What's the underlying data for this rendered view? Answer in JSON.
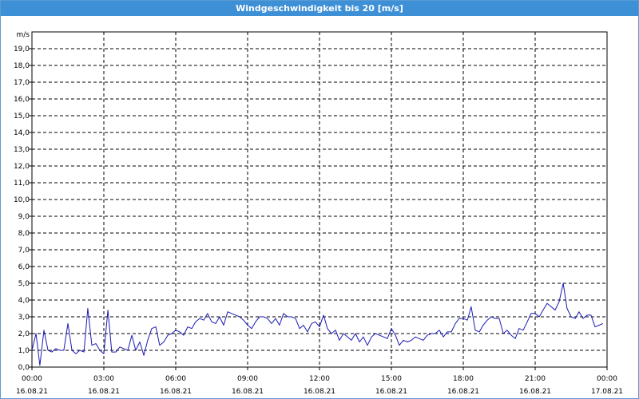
{
  "window": {
    "title": "Windgeschwindigkeit bis 20 [m/s]"
  },
  "colors": {
    "title_bar": "#3d8fd6",
    "line": "#1a1ab4",
    "grid": "#000000"
  },
  "chart_data": {
    "type": "line",
    "title": "Windgeschwindigkeit bis 20 [m/s]",
    "ylabel": "m/s",
    "xlabel": "",
    "ylim": [
      0,
      20
    ],
    "xlim_hours": [
      0,
      24
    ],
    "grid": true,
    "legend": "none",
    "y_ticks": [
      "0,0",
      "1,0",
      "2,0",
      "3,0",
      "4,0",
      "5,0",
      "6,0",
      "7,0",
      "8,0",
      "9,0",
      "10,0",
      "11,0",
      "12,0",
      "13,0",
      "14,0",
      "15,0",
      "16,0",
      "17,0",
      "18,0",
      "19,0"
    ],
    "x_ticks": [
      {
        "time": "00:00",
        "date": "16.08.21"
      },
      {
        "time": "03:00",
        "date": "16.08.21"
      },
      {
        "time": "06:00",
        "date": "16.08.21"
      },
      {
        "time": "09:00",
        "date": "16.08.21"
      },
      {
        "time": "12:00",
        "date": "16.08.21"
      },
      {
        "time": "15:00",
        "date": "16.08.21"
      },
      {
        "time": "18:00",
        "date": "16.08.21"
      },
      {
        "time": "21:00",
        "date": "16.08.21"
      },
      {
        "time": "00:00",
        "date": "17.08.21"
      }
    ],
    "series": [
      {
        "x": [
          0,
          0.17,
          0.33,
          0.5,
          0.67,
          0.83,
          1.0,
          1.17,
          1.33,
          1.5,
          1.67,
          1.83,
          2.0,
          2.17,
          2.33,
          2.5,
          2.67,
          2.83,
          3.0,
          3.17,
          3.33,
          3.5,
          3.67,
          3.83,
          4.0,
          4.17,
          4.33,
          4.5,
          4.67,
          4.83,
          5.0,
          5.17,
          5.33,
          5.5,
          5.67,
          5.83,
          6.0,
          6.17,
          6.33,
          6.5,
          6.67,
          6.83,
          7.0,
          7.17,
          7.33,
          7.5,
          7.67,
          7.83,
          8.0,
          8.17,
          8.33,
          8.5,
          8.67,
          8.83,
          9.0,
          9.17,
          9.33,
          9.5,
          9.67,
          9.83,
          10.0,
          10.17,
          10.33,
          10.5,
          10.67,
          10.83,
          11.0,
          11.17,
          11.33,
          11.5,
          11.67,
          11.83,
          12.0,
          12.17,
          12.33,
          12.5,
          12.67,
          12.83,
          13.0,
          13.17,
          13.33,
          13.5,
          13.67,
          13.83,
          14.0,
          14.17,
          14.33,
          14.5,
          14.67,
          14.83,
          15.0,
          15.17,
          15.33,
          15.5,
          15.67,
          15.83,
          16.0,
          16.17,
          16.33,
          16.5,
          16.67,
          16.83,
          17.0,
          17.17,
          17.33,
          17.5,
          17.67,
          17.83,
          18.0,
          18.17,
          18.33,
          18.5,
          18.67,
          18.83,
          19.0,
          19.17,
          19.33,
          19.5,
          19.67,
          19.83,
          20.0,
          20.17,
          20.33,
          20.5,
          20.67,
          20.83,
          21.0,
          21.17,
          21.33,
          21.5,
          21.67,
          21.83,
          22.0,
          22.17,
          22.33,
          22.5,
          22.67,
          22.83,
          23.0,
          23.17,
          23.33,
          23.5,
          23.67,
          23.83
        ],
        "values": [
          1.0,
          2.0,
          0.1,
          2.2,
          1.0,
          0.9,
          1.1,
          1.0,
          1.0,
          2.6,
          1.0,
          0.8,
          1.0,
          0.9,
          3.5,
          1.3,
          1.4,
          1.0,
          0.8,
          3.4,
          0.9,
          0.9,
          1.2,
          1.1,
          1.0,
          1.9,
          1.0,
          1.5,
          0.7,
          1.6,
          2.3,
          2.4,
          1.3,
          1.5,
          1.9,
          2.0,
          2.2,
          2.1,
          1.9,
          2.4,
          2.3,
          2.7,
          2.9,
          2.8,
          3.2,
          2.7,
          2.6,
          3.0,
          2.5,
          3.3,
          3.2,
          3.1,
          3.0,
          2.8,
          2.5,
          2.3,
          2.7,
          3.0,
          3.0,
          2.9,
          2.6,
          2.9,
          2.5,
          3.2,
          3.0,
          3.0,
          2.9,
          2.3,
          2.5,
          2.1,
          2.6,
          2.7,
          2.4,
          3.1,
          2.3,
          2.0,
          2.2,
          1.6,
          2.0,
          1.8,
          1.6,
          2.0,
          1.5,
          1.8,
          1.3,
          1.8,
          2.0,
          1.9,
          1.8,
          1.7,
          2.3,
          1.9,
          1.3,
          1.6,
          1.5,
          1.6,
          1.8,
          1.7,
          1.6,
          1.9,
          2.0,
          2.0,
          2.2,
          1.8,
          2.1,
          2.1,
          2.6,
          2.9,
          2.9,
          2.8,
          3.6,
          2.2,
          2.1,
          2.5,
          2.8,
          3.0,
          2.9,
          2.9,
          2.0,
          2.2,
          1.9,
          1.7,
          2.3,
          2.2,
          2.7,
          3.2,
          3.2,
          3.0,
          3.4,
          3.8,
          3.6,
          3.4,
          3.9,
          5.0,
          3.5,
          3.0,
          2.9,
          3.3,
          2.9,
          3.1,
          3.1,
          2.4,
          2.5,
          2.6
        ]
      }
    ]
  }
}
